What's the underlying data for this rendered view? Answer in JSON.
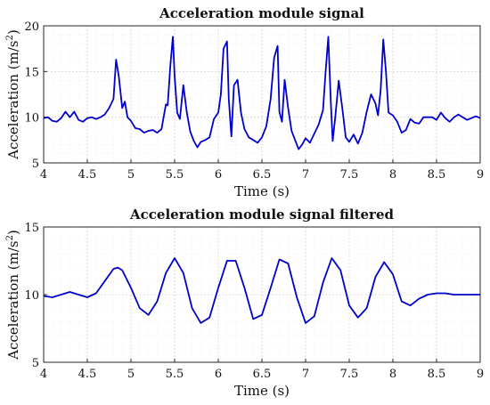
{
  "chart_data": [
    {
      "type": "line",
      "title": "Acceleration module signal",
      "xlabel": "Time (s)",
      "ylabel": "Acceleration (m/s",
      "ylabel_sup": "2",
      "ylabel_close": ")",
      "xlim": [
        4,
        9
      ],
      "ylim": [
        5,
        20
      ],
      "xticks": [
        4,
        4.5,
        5,
        5.5,
        6,
        6.5,
        7,
        7.5,
        8,
        8.5,
        9
      ],
      "xtick_labels": [
        "4",
        "4.5",
        "5",
        "5.5",
        "6",
        "6.5",
        "7",
        "7.5",
        "8",
        "8.5",
        "9"
      ],
      "yticks": [
        5,
        10,
        15,
        20
      ],
      "ytick_labels": [
        "5",
        "10",
        "15",
        "20"
      ],
      "grid": true,
      "colors": {
        "line": "#0000cc"
      },
      "series": [
        {
          "x": [
            4.0,
            4.05,
            4.1,
            4.15,
            4.2,
            4.25,
            4.3,
            4.35,
            4.4,
            4.45,
            4.5,
            4.55,
            4.6,
            4.65,
            4.7,
            4.75,
            4.8,
            4.83,
            4.86,
            4.9,
            4.93,
            4.96,
            5.0,
            5.05,
            5.1,
            5.15,
            5.2,
            5.25,
            5.3,
            5.35,
            5.4,
            5.42,
            5.45,
            5.48,
            5.5,
            5.53,
            5.56,
            5.6,
            5.64,
            5.68,
            5.72,
            5.76,
            5.8,
            5.85,
            5.9,
            5.95,
            6.0,
            6.03,
            6.06,
            6.1,
            6.12,
            6.15,
            6.18,
            6.22,
            6.26,
            6.3,
            6.35,
            6.4,
            6.45,
            6.5,
            6.55,
            6.6,
            6.64,
            6.68,
            6.7,
            6.73,
            6.76,
            6.8,
            6.84,
            6.88,
            6.92,
            6.96,
            7.0,
            7.05,
            7.1,
            7.15,
            7.2,
            7.23,
            7.26,
            7.29,
            7.31,
            7.34,
            7.38,
            7.42,
            7.46,
            7.5,
            7.55,
            7.6,
            7.65,
            7.7,
            7.75,
            7.8,
            7.83,
            7.86,
            7.89,
            7.92,
            7.95,
            8.0,
            8.05,
            8.1,
            8.15,
            8.2,
            8.25,
            8.3,
            8.35,
            8.4,
            8.45,
            8.5,
            8.55,
            8.6,
            8.65,
            8.7,
            8.75,
            8.8,
            8.85,
            8.9,
            8.95,
            9.0
          ],
          "y": [
            9.9,
            10.0,
            9.6,
            9.5,
            9.9,
            10.6,
            10.0,
            10.6,
            9.7,
            9.5,
            9.9,
            10.0,
            9.8,
            10.0,
            10.3,
            11.0,
            12.0,
            16.3,
            14.5,
            11.0,
            11.7,
            10.0,
            9.6,
            8.8,
            8.7,
            8.3,
            8.5,
            8.6,
            8.3,
            8.7,
            11.4,
            11.3,
            15.5,
            18.8,
            14.5,
            10.5,
            9.8,
            13.5,
            10.5,
            8.4,
            7.4,
            6.7,
            7.3,
            7.5,
            7.8,
            9.8,
            10.5,
            12.5,
            17.5,
            18.3,
            12.0,
            7.9,
            13.5,
            14.1,
            10.5,
            8.7,
            7.8,
            7.5,
            7.2,
            7.8,
            9.0,
            12.0,
            16.5,
            17.8,
            10.6,
            9.5,
            14.1,
            11.0,
            8.5,
            7.5,
            6.5,
            7.0,
            7.7,
            7.2,
            8.2,
            9.2,
            10.8,
            15.0,
            18.8,
            11.5,
            7.4,
            10.0,
            14.0,
            11.0,
            7.8,
            7.3,
            8.1,
            7.1,
            8.3,
            10.6,
            12.5,
            11.5,
            10.2,
            13.0,
            18.5,
            15.0,
            10.5,
            10.2,
            9.5,
            8.3,
            8.6,
            9.8,
            9.4,
            9.3,
            10.0,
            10.0,
            10.0,
            9.7,
            10.5,
            9.9,
            9.5,
            10.0,
            10.3,
            10.0,
            9.7,
            9.9,
            10.1,
            9.9
          ]
        }
      ]
    },
    {
      "type": "line",
      "title": "Acceleration module signal filtered",
      "xlabel": "Time (s)",
      "ylabel": "Acceleration (m/s",
      "ylabel_sup": "2",
      "ylabel_close": ")",
      "xlim": [
        4,
        9
      ],
      "ylim": [
        5,
        15
      ],
      "xticks": [
        4,
        4.5,
        5,
        5.5,
        6,
        6.5,
        7,
        7.5,
        8,
        8.5,
        9
      ],
      "xtick_labels": [
        "4",
        "4.5",
        "5",
        "5.5",
        "6",
        "6.5",
        "7",
        "7.5",
        "8",
        "8.5",
        "9"
      ],
      "yticks": [
        5,
        10,
        15
      ],
      "ytick_labels": [
        "5",
        "10",
        "15"
      ],
      "grid": true,
      "colors": {
        "line": "#0000cc"
      },
      "series": [
        {
          "x": [
            4.0,
            4.1,
            4.2,
            4.3,
            4.4,
            4.5,
            4.6,
            4.7,
            4.8,
            4.85,
            4.9,
            5.0,
            5.1,
            5.2,
            5.3,
            5.4,
            5.5,
            5.6,
            5.7,
            5.8,
            5.9,
            6.0,
            6.1,
            6.2,
            6.3,
            6.4,
            6.5,
            6.6,
            6.7,
            6.8,
            6.9,
            7.0,
            7.1,
            7.2,
            7.3,
            7.4,
            7.5,
            7.6,
            7.7,
            7.8,
            7.9,
            8.0,
            8.1,
            8.2,
            8.3,
            8.4,
            8.5,
            8.6,
            8.7,
            8.8,
            8.9,
            9.0
          ],
          "y": [
            9.9,
            9.8,
            10.0,
            10.2,
            10.0,
            9.8,
            10.1,
            11.0,
            11.9,
            12.0,
            11.8,
            10.5,
            9.0,
            8.5,
            9.5,
            11.6,
            12.7,
            11.6,
            9.0,
            7.9,
            8.3,
            10.5,
            12.5,
            12.5,
            10.5,
            8.2,
            8.5,
            10.5,
            12.6,
            12.3,
            9.8,
            7.9,
            8.4,
            10.9,
            12.7,
            11.8,
            9.2,
            8.3,
            9.0,
            11.3,
            12.4,
            11.5,
            9.5,
            9.2,
            9.7,
            10.0,
            10.1,
            10.1,
            10.0,
            10.0,
            10.0,
            10.0
          ]
        }
      ]
    }
  ]
}
